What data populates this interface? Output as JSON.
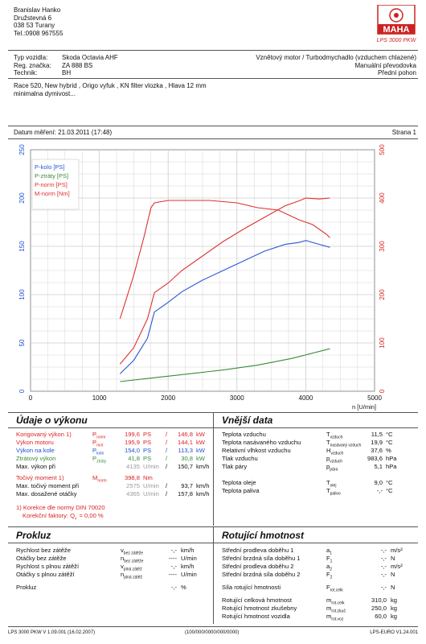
{
  "header": {
    "owner_lines": [
      "Branislav Hanko",
      "Družstevná 6",
      "038 53 Turany",
      "Tel.:0908 967555"
    ],
    "logo_text": "MAHA",
    "logo_subtitle": "LPS 3000 PKW"
  },
  "vehicle": {
    "labels": [
      "Typ vozidla:",
      "Reg. značka:",
      "Technik:"
    ],
    "values": [
      "Skoda Octavia AHF",
      "ZA 888 BS",
      "BH"
    ],
    "right_lines": [
      "Vznětový motor / Turbodmychadlo (vzduchem chlazené)",
      "Manuální převodovka",
      "Přední pohon"
    ]
  },
  "notes": [
    "Race 520, New hybrid , Origo vyfuk , KN filter vlozka , Hlava 12 mm",
    "minimalna dymivost..."
  ],
  "meta": {
    "date_label": "Datum měření: 21.03.2011 (17:48)",
    "page_label": "Strana 1"
  },
  "chart_data": {
    "type": "line",
    "xlabel": "n [U/min]",
    "xlim": [
      0,
      5000
    ],
    "ylim_left": [
      0,
      250
    ],
    "ylim_right": [
      0,
      500
    ],
    "x_ticks": [
      "0",
      "1000",
      "2000",
      "3000",
      "4000",
      "5000"
    ],
    "y_ticks_left": [
      "0",
      "50",
      "100",
      "150",
      "200",
      "250"
    ],
    "y_ticks_right": [
      "0",
      "100",
      "200",
      "300",
      "400",
      "500"
    ],
    "grid": true,
    "legend_position": "top-left",
    "series": [
      {
        "name": "P-kolo [PS]",
        "axis": "left",
        "color": "#2b55d6",
        "x": [
          1300,
          1500,
          1700,
          1800,
          2000,
          2200,
          2500,
          2800,
          3100,
          3400,
          3700,
          3900,
          4000,
          4200,
          4350
        ],
        "y": [
          18,
          32,
          55,
          82,
          92,
          103,
          115,
          125,
          135,
          145,
          152,
          154,
          156,
          152,
          149
        ]
      },
      {
        "name": "P-ztráty [PS]",
        "axis": "left",
        "color": "#3a8a3a",
        "x": [
          1300,
          1800,
          2300,
          2800,
          3300,
          3800,
          4350
        ],
        "y": [
          10,
          14,
          18,
          22,
          27,
          34,
          44
        ]
      },
      {
        "name": "P-norm [PS]",
        "axis": "left",
        "color": "#e03030",
        "x": [
          1300,
          1500,
          1700,
          1800,
          2000,
          2200,
          2500,
          2800,
          3100,
          3400,
          3700,
          3900,
          4000,
          4200,
          4350
        ],
        "y": [
          28,
          45,
          75,
          102,
          112,
          125,
          140,
          155,
          168,
          180,
          192,
          197,
          200,
          199,
          200
        ]
      },
      {
        "name": "M-norm [Nm]",
        "axis": "right",
        "color": "#e03030",
        "x": [
          1300,
          1500,
          1650,
          1750,
          1800,
          2000,
          2200,
          2600,
          3000,
          3300,
          3600,
          3900,
          4100,
          4300,
          4350
        ],
        "y": [
          150,
          240,
          320,
          380,
          390,
          395,
          395,
          395,
          390,
          380,
          375,
          355,
          345,
          325,
          318
        ]
      }
    ]
  },
  "performance": {
    "title": "Údaje o výkonu",
    "rows": [
      {
        "label": "Korigovaný výkon 1)",
        "sym": "P",
        "sub": "norm",
        "v1": "199,6",
        "u1": "PS",
        "v2": "146,8",
        "u2": "kW",
        "color": "red"
      },
      {
        "label": "Výkon motoru",
        "sym": "P",
        "sub": "mot",
        "v1": "195,9",
        "u1": "PS",
        "v2": "144,1",
        "u2": "kW",
        "color": "red"
      },
      {
        "label": "Výkon na kole",
        "sym": "P",
        "sub": "kolo",
        "v1": "154,0",
        "u1": "PS",
        "v2": "113,3",
        "u2": "kW",
        "color": "blue"
      },
      {
        "label": "Ztrátový výkon",
        "sym": "P",
        "sub": "ztráty",
        "v1": "41,8",
        "u1": "PS",
        "v2": "30,8",
        "u2": "kW",
        "color": "green"
      },
      {
        "label": "Max. výkon při",
        "sym": "",
        "sub": "",
        "v1": "4135",
        "u1": "U/min",
        "v2": "150,7",
        "u2": "km/h",
        "color": "black"
      }
    ],
    "torque_rows": [
      {
        "label": "Točivý moment 1)",
        "sym": "M",
        "sub": "norm",
        "v1": "398,8",
        "u1": "Nm",
        "v2": "",
        "u2": "",
        "color": "red"
      },
      {
        "label": "Max. točivý moment při",
        "sym": "",
        "sub": "",
        "v1": "2575",
        "u1": "U/min",
        "v2": "93,7",
        "u2": "km/h",
        "color": "black"
      },
      {
        "label": "Max. dosažené otáčky",
        "sym": "",
        "sub": "",
        "v1": "4365",
        "u1": "U/min",
        "v2": "157,8",
        "u2": "km/h",
        "color": "black"
      }
    ],
    "norm_lines": [
      "1) Korekce dle normy DIN 70020",
      "Korekční faktory: Q",
      "= 0,00 %"
    ]
  },
  "external": {
    "title": "Vnější data",
    "rows": [
      {
        "label": "Teplota vzduchu",
        "sym": "T",
        "sub": "vzduch",
        "v": "11,5",
        "u": "°C"
      },
      {
        "label": "Teplota nasávaného vzduchu",
        "sym": "T",
        "sub": "nasávaný vzduch",
        "v": "19,9",
        "u": "°C"
      },
      {
        "label": "Relativní vlhkost vzduchu",
        "sym": "H",
        "sub": "vzduch",
        "v": "37,6",
        "u": "%"
      },
      {
        "label": "Tlak vzduchu",
        "sym": "p",
        "sub": "vzduch",
        "v": "983,6",
        "u": "hPa"
      },
      {
        "label": "Tlak páry",
        "sym": "p",
        "sub": "pára",
        "v": "5,1",
        "u": "hPa"
      },
      {
        "label": "Teplota oleje",
        "sym": "T",
        "sub": "olej",
        "v": "9,0",
        "u": "°C"
      },
      {
        "label": "Teplota paliva",
        "sym": "T",
        "sub": "palivo",
        "v": "-,-",
        "u": "°C"
      }
    ]
  },
  "prokluz": {
    "title": "Prokluz",
    "rows": [
      {
        "label": "Rychlost bez zátěže",
        "sym": "v",
        "sub": "bez zátěže",
        "v": "-,-",
        "u": "km/h"
      },
      {
        "label": "Otáčky bez zátěže",
        "sym": "n",
        "sub": "bez zátěže",
        "v": "----",
        "u": "U/min"
      },
      {
        "label": "Rychlost s plnou zátěží",
        "sym": "v",
        "sub": "plná zátěž",
        "v": "-,-",
        "u": "km/h"
      },
      {
        "label": "Otáčky s plnou zátěží",
        "sym": "n",
        "sub": "plná zátěž",
        "v": "----",
        "u": "U/min"
      },
      {
        "label": "Prokluz",
        "sym": "",
        "sub": "",
        "v": "-,-",
        "u": "%"
      }
    ]
  },
  "rotating": {
    "title": "Rotující hmotnost",
    "rows": [
      {
        "label": "Střední prodleva doběhu 1",
        "sym": "a",
        "sub": "1",
        "v": "-,-",
        "u": "m/s²"
      },
      {
        "label": "Střední brzdná síla doběhu 1",
        "sym": "F",
        "sub": "1",
        "v": "-,-",
        "u": "N"
      },
      {
        "label": "Střední prodleva doběhu 2",
        "sym": "a",
        "sub": "2",
        "v": "-,-",
        "u": "m/s²"
      },
      {
        "label": "Střední brzdná síla doběhu 2",
        "sym": "F",
        "sub": "2",
        "v": "-,-",
        "u": "N"
      },
      {
        "label": "Síla rotující hmotnosti",
        "sym": "F",
        "sub": "rot.celk",
        "v": "-,-",
        "u": "N"
      },
      {
        "label": "Rotující celková hmotnost",
        "sym": "m",
        "sub": "rot.celk",
        "v": "310,0",
        "u": "kg"
      },
      {
        "label": "Rotující hmotnost zkušebny",
        "sym": "m",
        "sub": "rot.zkuš",
        "v": "250,0",
        "u": "kg"
      },
      {
        "label": "Rotující hmotnost vozidla",
        "sym": "m",
        "sub": "rot.voz",
        "v": "60,0",
        "u": "kg"
      }
    ]
  },
  "footer": {
    "left": "LPS 3000 PKW V 1.09.001 (16.02.2007)",
    "center": "(100/000/0000/000/0000)",
    "right": "LPS-EURO V1.24.001"
  }
}
